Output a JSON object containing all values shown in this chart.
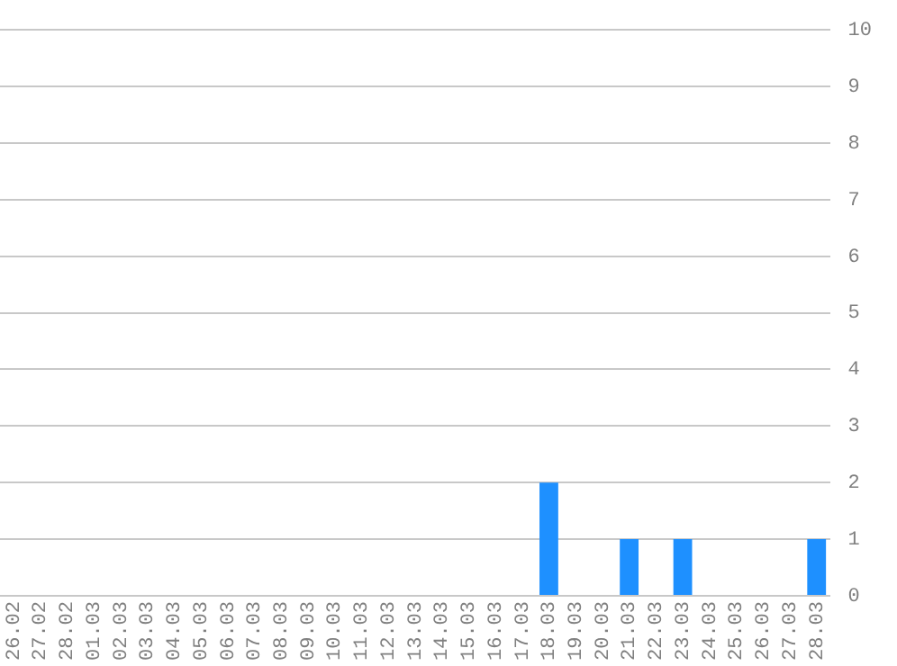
{
  "chart_data": {
    "type": "bar",
    "categories": [
      "26.02",
      "27.02",
      "28.02",
      "01.03",
      "02.03",
      "03.03",
      "04.03",
      "05.03",
      "06.03",
      "07.03",
      "08.03",
      "09.03",
      "10.03",
      "11.03",
      "12.03",
      "13.03",
      "14.03",
      "15.03",
      "16.03",
      "17.03",
      "18.03",
      "19.03",
      "20.03",
      "21.03",
      "22.03",
      "23.03",
      "24.03",
      "25.03",
      "26.03",
      "27.03",
      "28.03"
    ],
    "values": [
      0,
      0,
      0,
      0,
      0,
      0,
      0,
      0,
      0,
      0,
      0,
      0,
      0,
      0,
      0,
      0,
      0,
      0,
      0,
      0,
      2,
      0,
      0,
      1,
      0,
      1,
      0,
      0,
      0,
      0,
      1
    ],
    "color": "#1e90ff",
    "ylim": [
      0,
      10
    ],
    "yticks": [
      0,
      1,
      2,
      3,
      4,
      5,
      6,
      7,
      8,
      9,
      10
    ],
    "grid": "y"
  }
}
